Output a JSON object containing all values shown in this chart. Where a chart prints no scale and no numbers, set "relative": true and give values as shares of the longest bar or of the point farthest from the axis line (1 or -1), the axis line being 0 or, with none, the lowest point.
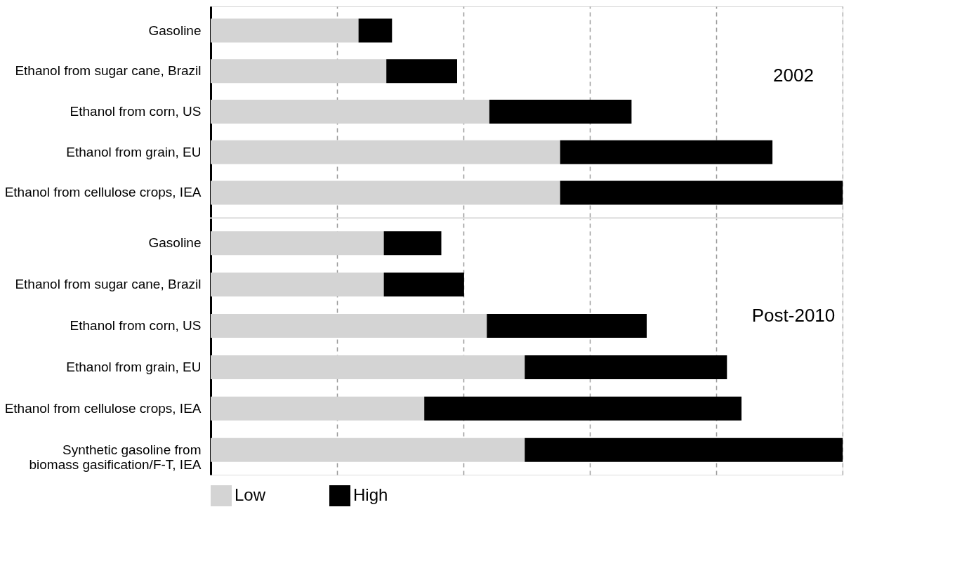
{
  "chart_data": [
    {
      "type": "bar",
      "orientation": "horizontal",
      "stacked": true,
      "relative": true,
      "title": "2002",
      "grid": "x",
      "legend": "bottom",
      "categories": [
        "Gasoline",
        "Ethanol from sugar cane, Brazil",
        "Ethanol from corn, US",
        "Ethanol from grain, EU",
        "Ethanol from cellulose crops, IEA"
      ],
      "series": [
        {
          "name": "Low",
          "color": "#d4d4d4",
          "values": [
            0.234,
            0.278,
            0.441,
            0.553,
            0.553
          ]
        },
        {
          "name": "High",
          "color": "#000000",
          "values": [
            0.053,
            0.112,
            0.225,
            0.336,
            0.447
          ]
        }
      ]
    },
    {
      "type": "bar",
      "orientation": "horizontal",
      "stacked": true,
      "relative": true,
      "title": "Post-2010",
      "grid": "x",
      "legend": "bottom",
      "categories": [
        "Gasoline",
        "Ethanol from sugar cane, Brazil",
        "Ethanol from corn, US",
        "Ethanol from grain, EU",
        "Ethanol from cellulose crops, IEA",
        "Synthetic gasoline from biomass gasification/F-T, IEA"
      ],
      "series": [
        {
          "name": "Low",
          "color": "#d4d4d4",
          "values": [
            0.274,
            0.274,
            0.437,
            0.497,
            0.338,
            0.497
          ]
        },
        {
          "name": "High",
          "color": "#000000",
          "values": [
            0.091,
            0.127,
            0.253,
            0.32,
            0.502,
            0.503
          ]
        }
      ]
    }
  ]
}
